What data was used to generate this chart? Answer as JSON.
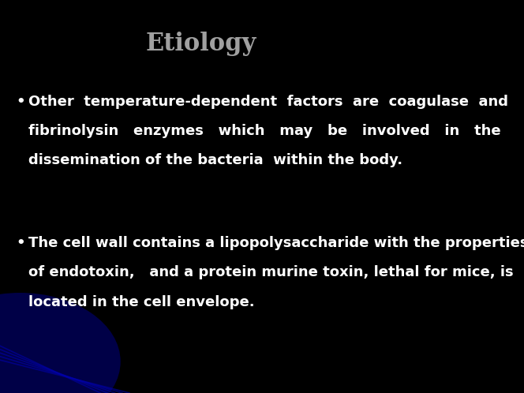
{
  "title": "Etiology",
  "title_color": "#a0a0a0",
  "title_fontsize": 22,
  "background_color": "#000000",
  "bullet_color": "#ffffff",
  "bullet_fontsize": 13,
  "bullet1_lines": [
    "Other  temperature-dependent  factors  are  coagulase  and",
    "fibrinolysin   enzymes   which   may   be   involved   in   the",
    "dissemination of the bacteria  within the body."
  ],
  "bullet2_lines": [
    "The cell wall contains a lipopolysaccharide with the properties",
    "of endotoxin,   and a protein murine toxin, lethal for mice, is",
    "located in the cell envelope."
  ],
  "blue_glow_color": "#000080",
  "figsize": [
    6.64,
    4.98
  ],
  "dpi": 100
}
